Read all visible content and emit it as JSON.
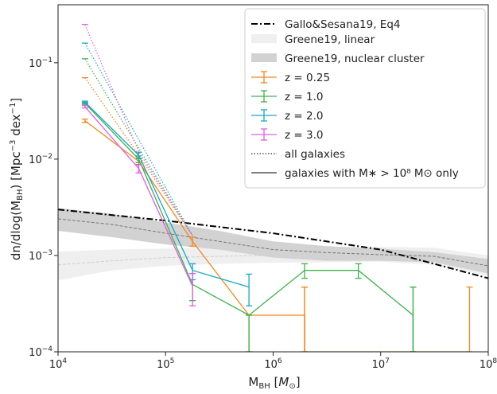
{
  "chart_data": {
    "type": "line",
    "xlabel": "M_BH [M_⊙]",
    "ylabel": "dn/dlog(M_BH) [Mpc^-3 dex^-1]",
    "x_scale": "log",
    "y_scale": "log",
    "xlim": [
      10000,
      100000000
    ],
    "ylim": [
      0.0001,
      0.4
    ],
    "grid": false,
    "legend_position": "top-right",
    "x_ticks": [
      {
        "value": 10000,
        "base": "10",
        "exp": "4"
      },
      {
        "value": 100000,
        "base": "10",
        "exp": "5"
      },
      {
        "value": 1000000,
        "base": "10",
        "exp": "6"
      },
      {
        "value": 10000000,
        "base": "10",
        "exp": "7"
      },
      {
        "value": 100000000,
        "base": "10",
        "exp": "8"
      }
    ],
    "y_ticks": [
      {
        "value": 0.0001,
        "base": "10",
        "exp": "−4"
      },
      {
        "value": 0.001,
        "base": "10",
        "exp": "−3"
      },
      {
        "value": 0.01,
        "base": "10",
        "exp": "−2"
      },
      {
        "value": 0.1,
        "base": "10",
        "exp": "−1"
      }
    ],
    "gallo_sesana": {
      "name": "Gallo&Sesana19, Eq4",
      "color": "#000000",
      "x": [
        10000,
        100000,
        1000000,
        10000000,
        100000000
      ],
      "y": [
        0.003,
        0.0023,
        0.0017,
        0.00115,
        0.00058
      ]
    },
    "greene_linear": {
      "name": "Greene19, linear",
      "fill_color": "#efefef",
      "median_color": "#cfcfcf",
      "x": [
        10000,
        31600,
        100000,
        316000,
        1000000,
        3160000,
        10000000,
        31600000,
        100000000
      ],
      "lower": [
        0.00055,
        0.0007,
        0.00078,
        0.00082,
        0.00084,
        0.00085,
        0.00086,
        0.0008,
        0.00062
      ],
      "upper": [
        0.0011,
        0.00115,
        0.00118,
        0.0012,
        0.0012,
        0.00122,
        0.00123,
        0.0012,
        0.001
      ],
      "median": [
        0.0008,
        0.00088,
        0.00095,
        0.00098,
        0.001,
        0.001,
        0.001,
        0.00098,
        0.00085
      ]
    },
    "greene_nuclear": {
      "name": "Greene19, nuclear cluster",
      "fill_color": "#d2d2d2",
      "median_color": "#777777",
      "x": [
        10000,
        31600,
        100000,
        316000,
        1000000,
        3160000,
        10000000,
        31600000,
        100000000
      ],
      "lower": [
        0.0018,
        0.00155,
        0.0013,
        0.00115,
        0.00095,
        0.00088,
        0.00088,
        0.00085,
        0.00065
      ],
      "upper": [
        0.0031,
        0.0027,
        0.0022,
        0.0018,
        0.0014,
        0.00125,
        0.00118,
        0.00108,
        0.00092
      ],
      "median": [
        0.0024,
        0.0021,
        0.0017,
        0.0014,
        0.00115,
        0.00107,
        0.00102,
        0.00098,
        0.00078
      ]
    },
    "series": [
      {
        "name": "z = 0.25",
        "color": "#f5871f",
        "x": [
          17800,
          56200,
          178000,
          596000,
          1960000,
          1960000,
          67000000
        ],
        "y": [
          0.025,
          0.0095,
          0.0014,
          0.00024,
          0.00024,
          0.0001,
          0.0001
        ],
        "err_low": [
          0.024,
          0.0087,
          0.00125,
          0.0001,
          0.0001,
          0.0001,
          0.0001
        ],
        "err_high": [
          0.026,
          0.0101,
          0.00155,
          0.00024,
          0.00047,
          0.00047,
          0.00047
        ],
        "all_galaxies_y": [
          0.07,
          0.011,
          0.0016
        ]
      },
      {
        "name": "z = 1.0",
        "color": "#3cb44b",
        "x": [
          17800,
          56200,
          178000,
          596000,
          1960000,
          6200000,
          20000000,
          20000000
        ],
        "y": [
          0.038,
          0.01,
          0.0005,
          0.00024,
          0.0007,
          0.0007,
          0.00024,
          0.0001
        ],
        "err_low": [
          0.037,
          0.0092,
          0.00034,
          0.0001,
          0.00058,
          0.00058,
          0.0001,
          0.0001
        ],
        "err_high": [
          0.039,
          0.0108,
          0.00065,
          0.00024,
          0.00082,
          0.00082,
          0.00047,
          0.00047
        ],
        "all_galaxies_y": [
          0.11,
          0.013,
          0.0016
        ]
      },
      {
        "name": "z = 2.0",
        "color": "#17a9c4",
        "x": [
          17800,
          56200,
          178000,
          596000
        ],
        "y": [
          0.039,
          0.011,
          0.0007,
          0.00047
        ],
        "err_low": [
          0.038,
          0.0102,
          0.00056,
          0.0003
        ],
        "err_high": [
          0.04,
          0.0118,
          0.00082,
          0.00064
        ],
        "all_galaxies_y": [
          0.16,
          0.016,
          0.0016
        ]
      },
      {
        "name": "z = 3.0",
        "color": "#e45be4",
        "x": [
          17800,
          56200,
          178000
        ],
        "y": [
          0.035,
          0.008,
          0.00048
        ],
        "err_low": [
          0.034,
          0.0072,
          0.0003
        ],
        "err_high": [
          0.036,
          0.0088,
          0.00065
        ],
        "all_galaxies_y": [
          0.25,
          0.012,
          0.0016
        ]
      }
    ],
    "legend": {
      "gallo_label": "Gallo&Sesana19, Eq4",
      "greene_linear_label": "Greene19, linear",
      "greene_nuclear_label": "Greene19, nuclear cluster",
      "z025_label": "z = 0.25",
      "z1_label": "z = 1.0",
      "z2_label": "z = 2.0",
      "z3_label": "z = 3.0",
      "all_galaxies_label": "all galaxies",
      "massive_galaxies_label": "galaxies with M∗ > 10⁸ M⊙ only"
    }
  }
}
